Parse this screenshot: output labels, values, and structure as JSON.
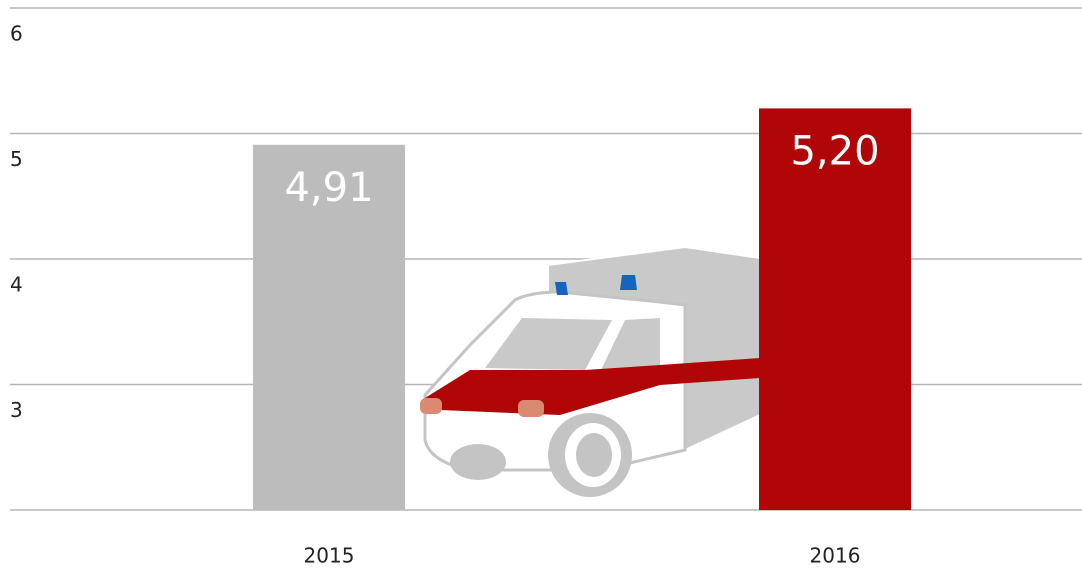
{
  "chart_data": {
    "type": "bar",
    "categories": [
      "2015",
      "2016"
    ],
    "values": [
      4.91,
      5.2
    ],
    "value_labels": [
      "4,91",
      "5,20"
    ],
    "colors": [
      "#bbbcbb",
      "#b00607"
    ],
    "ylim": [
      2,
      6
    ],
    "yticks": [
      3,
      4,
      5,
      6
    ],
    "grid": true
  }
}
